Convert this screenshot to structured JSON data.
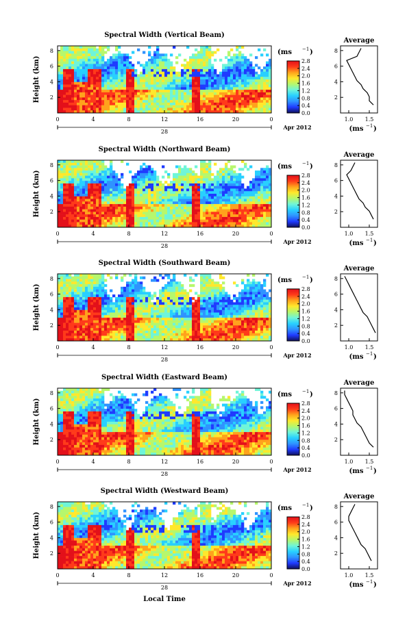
{
  "colorbar": {
    "unit_label": "(ms",
    "unit_exp": "−1",
    "ticks": [
      "0.0",
      "0.4",
      "0.8",
      "1.2",
      "1.6",
      "2.0",
      "2.4",
      "2.8"
    ],
    "stops": [
      "#10105a",
      "#1f3bff",
      "#2f93ff",
      "#28d0ff",
      "#6ff5d8",
      "#b6f76c",
      "#ffe82c",
      "#ffa21c",
      "#ff3a1a",
      "#e3101a"
    ]
  },
  "x_axis": {
    "ticks": [
      "0",
      "4",
      "8",
      "12",
      "16",
      "20",
      "0"
    ],
    "day_label": "28",
    "date_label": "Apr 2012",
    "xlabel": "Local Time"
  },
  "y_axis": {
    "label": "Height (km)",
    "ticks": [
      "2",
      "4",
      "6",
      "8"
    ]
  },
  "profile": {
    "title": "Average",
    "xlabel": "(ms",
    "xlabel_exp": "−1"
  },
  "chart_data": [
    {
      "type": "heatmap",
      "title": "Spectral Width (Vertical Beam)",
      "profile_xticks": [
        "1.0",
        "1.5"
      ],
      "profile_xlim": [
        0.8,
        1.7
      ],
      "profile": {
        "height_km": [
          1.0,
          1.5,
          2.0,
          2.5,
          3.0,
          3.5,
          4.0,
          4.5,
          5.0,
          5.5,
          6.0,
          6.5,
          7.0,
          7.5,
          8.0
        ],
        "width": [
          1.6,
          1.5,
          1.5,
          1.45,
          1.35,
          1.3,
          1.2,
          1.15,
          1.1,
          1.05,
          1.0,
          0.95,
          1.2,
          1.25,
          1.3
        ]
      }
    },
    {
      "type": "heatmap",
      "title": "Spectral Width (Northward Beam)",
      "profile_xticks": [
        "1.0",
        "1.5"
      ],
      "profile_xlim": [
        0.8,
        1.7
      ],
      "profile": {
        "height_km": [
          1.0,
          1.5,
          2.0,
          2.5,
          3.0,
          3.5,
          4.0,
          4.5,
          5.0,
          5.5,
          6.0,
          6.5,
          7.0,
          7.5,
          8.0
        ],
        "width": [
          1.6,
          1.55,
          1.5,
          1.4,
          1.35,
          1.25,
          1.2,
          1.15,
          1.1,
          1.05,
          1.0,
          0.95,
          1.05,
          1.1,
          1.15
        ]
      }
    },
    {
      "type": "heatmap",
      "title": "Spectral Width (Southward Beam)",
      "profile_xticks": [
        "1.0",
        "1.5"
      ],
      "profile_xlim": [
        0.8,
        1.7
      ],
      "profile": {
        "height_km": [
          1.0,
          1.5,
          2.0,
          2.5,
          3.0,
          3.5,
          4.0,
          4.5,
          5.0,
          5.5,
          6.0,
          6.5,
          7.0,
          7.5,
          8.0
        ],
        "width": [
          1.65,
          1.6,
          1.55,
          1.5,
          1.45,
          1.35,
          1.3,
          1.25,
          1.2,
          1.15,
          1.1,
          1.05,
          1.0,
          0.95,
          0.9
        ]
      }
    },
    {
      "type": "heatmap",
      "title": "Spectral Width (Eastward Beam)",
      "profile_xticks": [
        "1.0",
        "1.5"
      ],
      "profile_xlim": [
        0.8,
        1.7
      ],
      "profile": {
        "height_km": [
          1.0,
          1.5,
          2.0,
          2.5,
          3.0,
          3.5,
          4.0,
          4.5,
          5.0,
          5.5,
          6.0,
          6.5,
          7.0,
          7.5,
          8.0
        ],
        "width": [
          1.6,
          1.5,
          1.45,
          1.4,
          1.35,
          1.3,
          1.2,
          1.15,
          1.1,
          1.1,
          1.05,
          1.0,
          0.95,
          0.9,
          0.9
        ]
      }
    },
    {
      "type": "heatmap",
      "title": "Spectral Width (Westward Beam)",
      "profile_xticks": [
        "1.0",
        "1.5"
      ],
      "profile_xlim": [
        0.8,
        1.7
      ],
      "profile": {
        "height_km": [
          1.0,
          1.5,
          2.0,
          2.5,
          3.0,
          3.5,
          4.0,
          4.5,
          5.0,
          5.5,
          6.0,
          6.5,
          7.0,
          7.5,
          8.0
        ],
        "width": [
          1.55,
          1.5,
          1.45,
          1.4,
          1.3,
          1.25,
          1.2,
          1.15,
          1.1,
          1.05,
          1.0,
          1.0,
          1.05,
          1.1,
          1.15
        ]
      }
    }
  ]
}
